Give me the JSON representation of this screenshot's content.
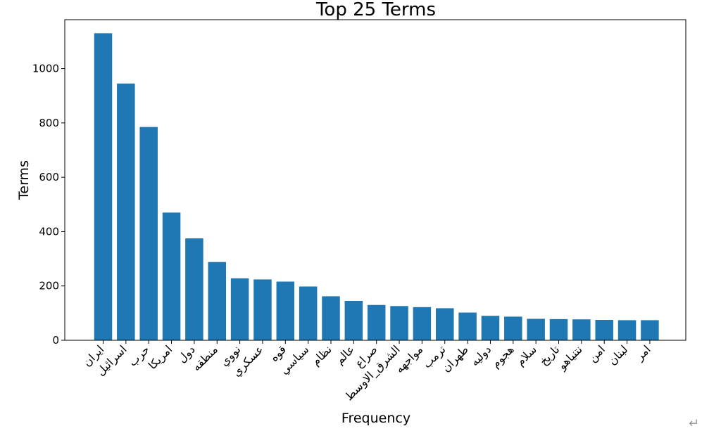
{
  "chart_data": {
    "type": "bar",
    "title": "Top 25 Terms",
    "xlabel": "Frequency",
    "ylabel": "Terms",
    "ylim": [
      0,
      1180
    ],
    "yticks": [
      0,
      200,
      400,
      600,
      800,
      1000
    ],
    "grid": false,
    "bar_color": "#1f77b4",
    "categories": [
      "ايران",
      "اسرائيل",
      "حرب",
      "امريكا",
      "دول",
      "منطقه",
      "نووي",
      "عسكري",
      "قوه",
      "سياسي",
      "نظام",
      "عالم",
      "صراع",
      "الشرق_الاوسط",
      "مواجهه",
      "ترمب",
      "طهران",
      "دوليه",
      "هجوم",
      "سلام",
      "تاريخ",
      "نتنياهو",
      "امن",
      "لبنان",
      "امر"
    ],
    "values": [
      1130,
      945,
      785,
      470,
      375,
      288,
      228,
      224,
      216,
      198,
      162,
      145,
      130,
      126,
      122,
      118,
      102,
      90,
      87,
      79,
      78,
      77,
      75,
      74,
      74
    ]
  },
  "page": {
    "return_symbol": "↵"
  }
}
